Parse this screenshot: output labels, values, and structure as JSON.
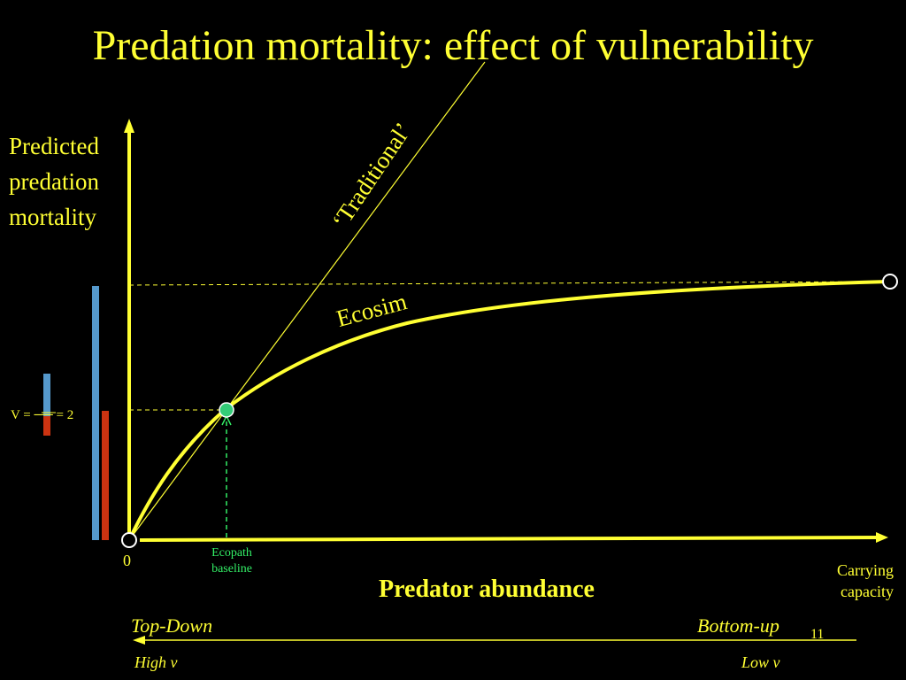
{
  "title": "Predation mortality: effect of vulnerability",
  "y_axis_label": [
    "Predicted",
    "predation",
    "mortality"
  ],
  "x_axis_label": "Predator abundance",
  "origin_label": "0",
  "ecopath_label": "Ecopath baseline",
  "carrying_capacity_label": "Carrying capacity",
  "curve_labels": {
    "traditional": "‘Traditional’",
    "ecosim": "Ecosim"
  },
  "control_axis": {
    "left_label": "Top-Down",
    "right_label": "Bottom-up",
    "left_sub": "High v",
    "right_sub": "Low v"
  },
  "vulnerability_label": "V = ── = 2",
  "page_number": "11",
  "colors": {
    "background": "#000000",
    "text": "#ffff33",
    "curve": "#ffff33",
    "baseline_marker": "#33cc77",
    "bar_blue": "#5599cc",
    "bar_red": "#cc3311"
  }
}
